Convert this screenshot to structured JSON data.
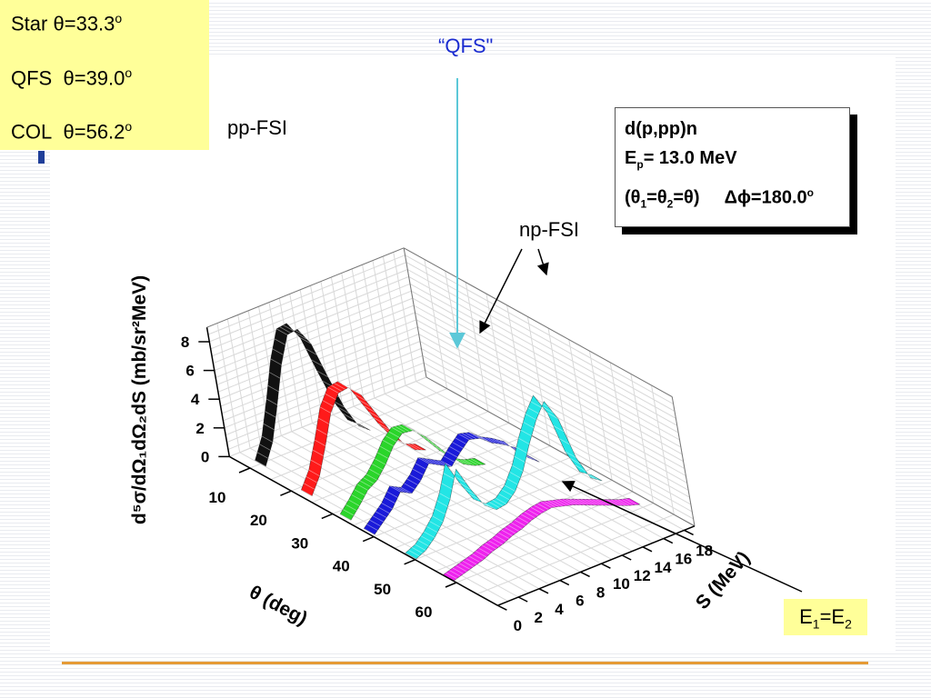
{
  "angle_box": {
    "rows": [
      {
        "name": "Star",
        "symbol": "θ",
        "value": "=33.3",
        "unit": "o"
      },
      {
        "name": "QFS",
        "symbol": "θ",
        "value": "=39.0",
        "unit": "o"
      },
      {
        "name": "COL",
        "symbol": "θ",
        "value": "=56.2",
        "unit": "o"
      }
    ]
  },
  "annotations": {
    "qfs": "“QFS\"",
    "pp_fsi": "pp-FSI",
    "np_fsi": "np-FSI"
  },
  "reaction_box": {
    "reaction": "d(p,pp)n",
    "ep_label": "E",
    "ep_sub": "p",
    "ep_value": "= 13.0 MeV",
    "angles_a": "(θ",
    "angles_sub1": "1",
    "angles_b": "=θ",
    "angles_sub2": "2",
    "angles_c": "=θ)",
    "dphi": "Δϕ=180.0",
    "dphi_sup": "o"
  },
  "e_box": {
    "e1": "E",
    "sub1": "1",
    "eq": "=E",
    "sub2": "2"
  },
  "colors": {
    "slide_background": "#ffffff",
    "highlight_box": "#ffff99",
    "qfs_label": "#1a2bd0",
    "qfs_arrow": "#5cc8d8",
    "rule": "#e59b35"
  },
  "chart_data": {
    "type": "area",
    "title": "",
    "xlabel": "θ (deg)",
    "ylabel": "d⁵σ/dΩ₁dΩ₂dS  (mb/sr²MeV)",
    "zlabel": "S (MeV)",
    "theta_ticks": [
      "10",
      "20",
      "30",
      "40",
      "50",
      "60"
    ],
    "y_ticks": [
      "0",
      "2",
      "4",
      "6",
      "8"
    ],
    "s_ticks": [
      "0",
      "2",
      "4",
      "6",
      "8",
      "10",
      "12",
      "14",
      "16",
      "18"
    ],
    "theta_range": [
      5,
      70
    ],
    "y_range": [
      0,
      9
    ],
    "s_range": [
      0,
      19
    ],
    "grid": true,
    "series": [
      {
        "theta": 13,
        "color": "#111111",
        "s": [
          0,
          1,
          2,
          3,
          4,
          5,
          6,
          7,
          8,
          9,
          10
        ],
        "y": [
          0.8,
          2.2,
          4.5,
          7.0,
          8.8,
          8.9,
          7.6,
          5.0,
          2.6,
          1.0,
          0.4
        ]
      },
      {
        "theta": 24,
        "color": "#ff1a1a",
        "s": [
          0,
          1,
          2,
          3,
          4,
          5,
          6,
          7,
          8,
          9,
          10,
          11
        ],
        "y": [
          0.5,
          1.6,
          3.4,
          5.4,
          6.5,
          6.6,
          5.8,
          4.3,
          2.8,
          1.6,
          0.8,
          0.5
        ]
      },
      {
        "theta": 33.3,
        "color": "#2ad52a",
        "s": [
          0,
          1,
          2,
          3,
          4,
          5,
          6,
          7,
          8,
          9,
          10,
          11,
          12,
          13
        ],
        "y": [
          0.3,
          1.0,
          1.8,
          2.2,
          3.0,
          4.0,
          4.6,
          4.5,
          3.8,
          2.8,
          1.8,
          1.0,
          0.6,
          0.4
        ]
      },
      {
        "theta": 39,
        "color": "#1a1ad9",
        "s": [
          0,
          1,
          2,
          3,
          4,
          5,
          6,
          7,
          8,
          9,
          10,
          11,
          12,
          13,
          14,
          15,
          16
        ],
        "y": [
          0.2,
          0.8,
          1.4,
          2.3,
          1.9,
          2.5,
          3.4,
          3.0,
          2.6,
          3.3,
          3.9,
          3.7,
          3.1,
          2.7,
          2.2,
          1.2,
          0.6
        ]
      },
      {
        "theta": 49,
        "color": "#22e5e5",
        "s": [
          0,
          1,
          2,
          3,
          4,
          5,
          6,
          7,
          8,
          9,
          10,
          11,
          12,
          13,
          14,
          15,
          16,
          17,
          18
        ],
        "y": [
          0.1,
          0.4,
          1.0,
          1.8,
          3.1,
          4.9,
          3.2,
          1.8,
          1.2,
          1.3,
          1.9,
          3.0,
          4.6,
          6.0,
          7.0,
          5.5,
          2.5,
          0.8,
          0.3
        ]
      },
      {
        "theta": 58,
        "color": "#ee22ee",
        "s": [
          0,
          1,
          2,
          3,
          4,
          5,
          6,
          7,
          8,
          9,
          10,
          11,
          12,
          13,
          14,
          15,
          16,
          17,
          18
        ],
        "y": [
          0.0,
          0.2,
          0.4,
          0.6,
          0.9,
          1.1,
          1.4,
          1.6,
          1.9,
          2.1,
          2.2,
          2.0,
          1.8,
          1.5,
          1.2,
          0.9,
          0.6,
          0.3,
          0.1
        ]
      }
    ]
  }
}
